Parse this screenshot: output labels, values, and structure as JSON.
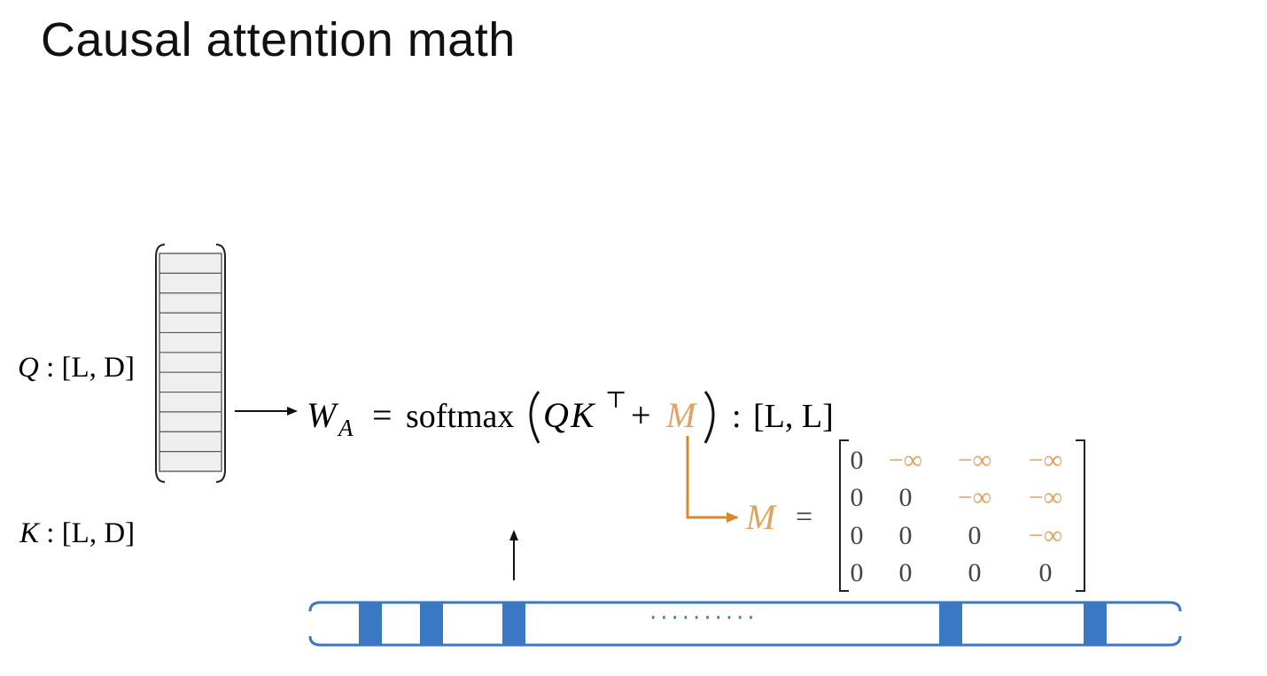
{
  "title": "Causal attention math",
  "q_label": {
    "var": "Q",
    "colon": " : ",
    "shape": "[L, D]"
  },
  "k_label": {
    "var": "K",
    "colon": " : ",
    "shape": "[L, D]"
  },
  "equation": {
    "lhs": "W",
    "lhs_sub": "A",
    "equals": "=",
    "func": "softmax",
    "q": "Q",
    "k": "K",
    "transpose": "⊤",
    "plus": "+",
    "mask": "M",
    "shape_colon": ":",
    "shape": "[L, L]"
  },
  "mask_definition": {
    "symbol": "M",
    "equals": "=",
    "rows": [
      [
        "0",
        "−∞",
        "−∞",
        "−∞"
      ],
      [
        "0",
        "0",
        "−∞",
        "−∞"
      ],
      [
        "0",
        "0",
        "0",
        "−∞"
      ],
      [
        "0",
        "0",
        "0",
        "0"
      ]
    ]
  },
  "sequence_bar": {
    "ellipsis": "··········"
  },
  "colors": {
    "mask": "#d68a2e",
    "mask_light": "#e1a460",
    "bar": "#3b78c3",
    "matrix_stroke": "#222222",
    "matrix_fill": "#efefef"
  }
}
